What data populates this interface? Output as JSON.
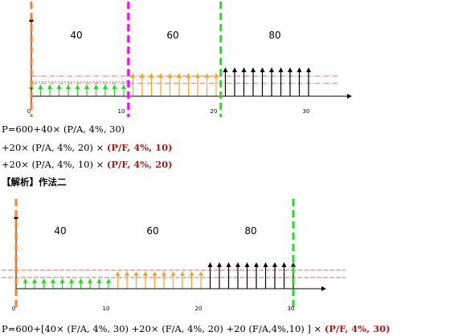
{
  "diagram1": {
    "segments": [
      {
        "label": "40",
        "from": 0,
        "to": 10,
        "color": "#22dd22"
      },
      {
        "label": "60",
        "from": 11,
        "to": 20,
        "color": "#ffa020"
      },
      {
        "label": "80",
        "from": 21,
        "to": 30,
        "color": "#000000"
      }
    ],
    "ticks": [
      "0",
      "10",
      "20",
      "30"
    ],
    "markers": [
      {
        "t": 0,
        "color": "#ff7f27"
      },
      {
        "t": 10.5,
        "color": "#ff00ff"
      },
      {
        "t": 20.5,
        "color": "#22dd22"
      }
    ]
  },
  "formula1": {
    "line1": "P=600+40× (P/A, 4%, 30)",
    "line2a": "+20× (P/A, 4%, 20) × ",
    "line2b": "(P/F, 4%, 10)",
    "line3a": "+20× (P/A, 4%, 10) × ",
    "line3b": "(P/F, 4%, 20)"
  },
  "heading": "【解析】作法二",
  "diagram2": {
    "segments": [
      {
        "label": "40",
        "from": 1,
        "to": 10,
        "color": "#22dd22"
      },
      {
        "label": "60",
        "from": 11,
        "to": 20,
        "color": "#ffa020"
      },
      {
        "label": "80",
        "from": 21,
        "to": 30,
        "color": "#000000"
      }
    ],
    "ticks": [
      "0",
      "10",
      "20",
      "30"
    ],
    "markers": [
      {
        "t": 0,
        "color": "#ff7f27"
      },
      {
        "t": 30,
        "color": "#22dd22"
      }
    ]
  },
  "formula2": {
    "line1a": "P=600+[40× (F/A, 4%, 30) +20× (F/A, 4%, 20) +20 (F/A,4%,10) ] × ",
    "line1b": "(P/F, 4%, 30)"
  }
}
